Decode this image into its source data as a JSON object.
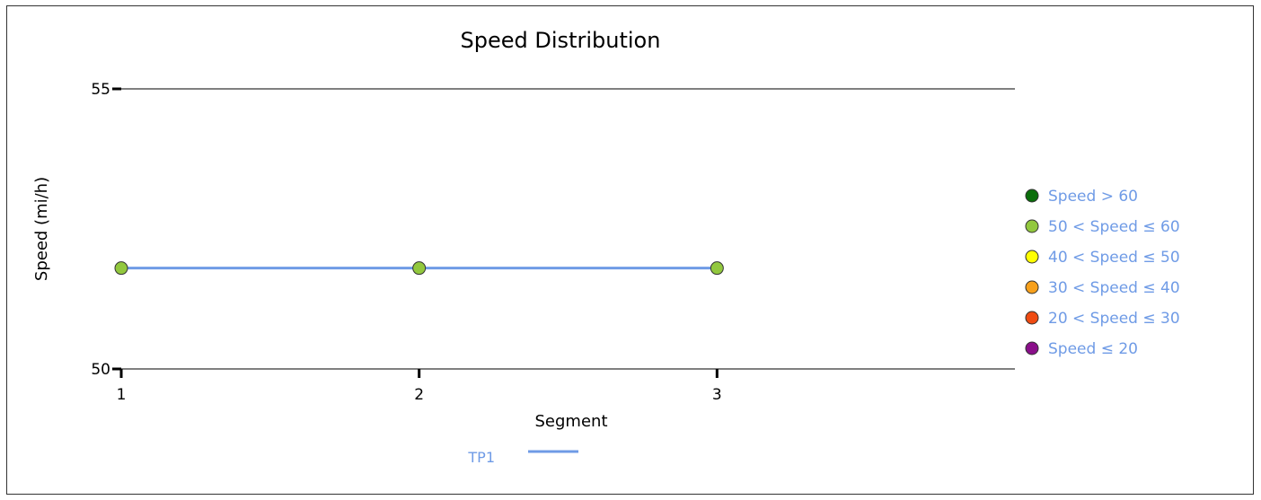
{
  "chart_data": {
    "type": "line",
    "title": "Speed Distribution",
    "xlabel": "Segment",
    "ylabel": "Speed (mi/h)",
    "x": [
      1,
      2,
      3
    ],
    "xlim": [
      1,
      4
    ],
    "ylim": [
      50,
      55
    ],
    "y_ticks": [
      "55",
      "50"
    ],
    "x_ticks": [
      "1",
      "2",
      "3"
    ],
    "grid": false,
    "series": [
      {
        "name": "TP1",
        "color": "#6f9be6",
        "values": [
          51.8,
          51.8,
          51.8
        ],
        "point_color": "#92c83e"
      }
    ],
    "speed_legend": {
      "placement": "right",
      "text_color": "#6f9be6",
      "entries": [
        {
          "label": "Speed > 60",
          "color": "#0a6e0a"
        },
        {
          "label": "50 < Speed ≤ 60",
          "color": "#92c83e"
        },
        {
          "label": "40 < Speed ≤ 50",
          "color": "#ffff00"
        },
        {
          "label": "30 < Speed ≤ 40",
          "color": "#f7a01c"
        },
        {
          "label": "20 < Speed ≤ 30",
          "color": "#ef4b12"
        },
        {
          "label": "Speed ≤ 20",
          "color": "#8a0f8a"
        }
      ]
    },
    "series_legend_placement": "bottom"
  }
}
